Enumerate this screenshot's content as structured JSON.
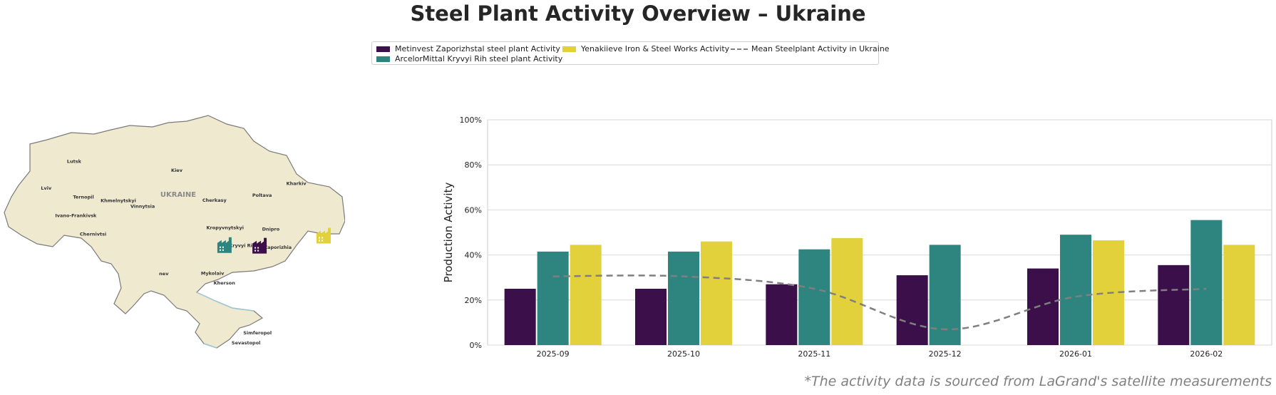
{
  "title": "Steel Plant Activity Overview – Ukraine",
  "legend": {
    "items": [
      {
        "label": "Metinvest Zaporizhstal steel plant Activity",
        "color": "#3b0f4a"
      },
      {
        "label": "ArcelorMittal Kryvyi Rih steel plant Activity",
        "color": "#2e8580"
      },
      {
        "label": "Yenakiieve Iron & Steel Works Activity",
        "color": "#e3d13c"
      },
      {
        "label": "Mean Steelplant Activity in Ukraine",
        "color": "#7f7f7f"
      }
    ]
  },
  "map": {
    "country_label": "UKRAINE",
    "cities": [
      {
        "name": "Lutsk",
        "lon": 25.3,
        "lat": 50.75
      },
      {
        "name": "Kiev",
        "lon": 30.5,
        "lat": 50.45
      },
      {
        "name": "Kharkiv",
        "lon": 36.25,
        "lat": 50.0
      },
      {
        "name": "Lviv",
        "lon": 24.0,
        "lat": 49.84
      },
      {
        "name": "Ternopil",
        "lon": 25.6,
        "lat": 49.55
      },
      {
        "name": "Poltava",
        "lon": 34.55,
        "lat": 49.6
      },
      {
        "name": "Cherkasy",
        "lon": 32.06,
        "lat": 49.44
      },
      {
        "name": "Khmelnytskyi",
        "lon": 26.98,
        "lat": 49.42
      },
      {
        "name": "Vinnytsia",
        "lon": 28.47,
        "lat": 49.23
      },
      {
        "name": "Ivano-Frankivsk",
        "lon": 24.71,
        "lat": 48.92
      },
      {
        "name": "Kropyvnytskyi",
        "lon": 32.26,
        "lat": 48.51
      },
      {
        "name": "Dnipro",
        "lon": 35.04,
        "lat": 48.46
      },
      {
        "name": "Chernivtsi",
        "lon": 25.94,
        "lat": 48.29
      },
      {
        "name": "Kryvyi Rih",
        "lon": 33.39,
        "lat": 47.91
      },
      {
        "name": "Zaporizhia",
        "lon": 35.14,
        "lat": 47.84
      },
      {
        "name": "nev",
        "lon": 29.9,
        "lat": 46.95
      },
      {
        "name": "Mykolaiv",
        "lon": 31.99,
        "lat": 46.97
      },
      {
        "name": "Kherson",
        "lon": 32.62,
        "lat": 46.64
      },
      {
        "name": "Simferopol",
        "lon": 34.1,
        "lat": 44.95
      },
      {
        "name": "Sevastopol",
        "lon": 33.52,
        "lat": 44.62
      }
    ],
    "plants": [
      {
        "name": "ArcelorMittal Kryvyi Rih",
        "lon": 33.2,
        "lat": 47.9,
        "color": "#2e8580"
      },
      {
        "name": "Metinvest Zaporizhstal",
        "lon": 34.95,
        "lat": 47.88,
        "color": "#3b0f4a"
      },
      {
        "name": "Yenakiieve Iron & Steel Works",
        "lon": 38.15,
        "lat": 48.22,
        "color": "#e3d13c"
      }
    ]
  },
  "chart_data": {
    "type": "bar",
    "categories": [
      "2025-09",
      "2025-10",
      "2025-11",
      "2025-12",
      "2026-01",
      "2026-02"
    ],
    "series": [
      {
        "name": "Metinvest Zaporizhstal steel plant Activity",
        "color": "#3b0f4a",
        "values": [
          25,
          25,
          27,
          31,
          34,
          35.5
        ]
      },
      {
        "name": "ArcelorMittal Kryvyi Rih steel plant Activity",
        "color": "#2e8580",
        "values": [
          41.5,
          41.5,
          42.5,
          44.5,
          49,
          55.5
        ]
      },
      {
        "name": "Yenakiieve Iron & Steel Works Activity",
        "color": "#e3d13c",
        "values": [
          44.5,
          46,
          47.5,
          null,
          46.5,
          44.5
        ]
      }
    ],
    "line": {
      "name": "Mean Steelplant Activity in Ukraine",
      "color": "#7f7f7f",
      "style": "dashed",
      "values": [
        30.5,
        30.5,
        25,
        7,
        21.5,
        25
      ]
    },
    "ylabel": "Production Activity",
    "ylim": [
      0,
      100
    ],
    "yticks": [
      "0%",
      "20%",
      "40%",
      "60%",
      "80%",
      "100%"
    ],
    "grid": "horizontal",
    "legend_position": "top-center"
  },
  "footnote": "*The activity data is sourced from LaGrand's satellite measurements"
}
